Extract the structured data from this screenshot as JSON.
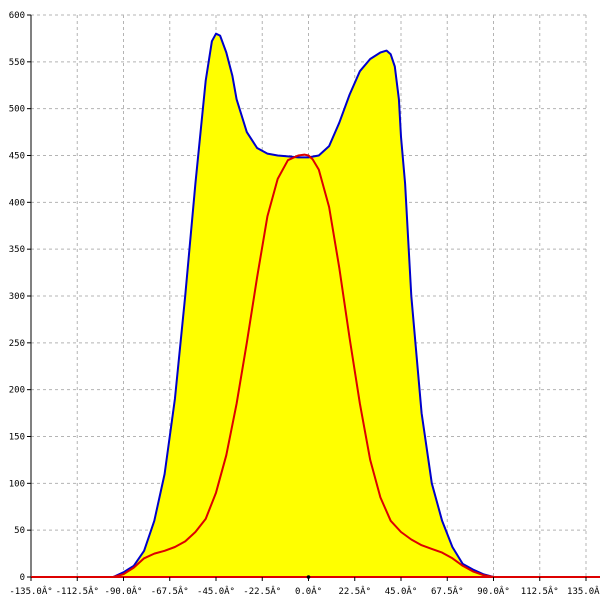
{
  "chart_data": {
    "type": "area",
    "title": "",
    "xlabel": "",
    "ylabel": "",
    "xlim": [
      -135,
      135
    ],
    "ylim": [
      0,
      600
    ],
    "grid": true,
    "x_ticks": [
      -135,
      -112.5,
      -90,
      -67.5,
      -45,
      -22.5,
      0,
      22.5,
      45,
      67.5,
      90,
      112.5,
      135
    ],
    "x_tick_labels": [
      "-135.0Â°",
      "-112.5Â°",
      "-90.0Â°",
      "-67.5Â°",
      "-45.0Â°",
      "-22.5Â°",
      "0.0Â°",
      "22.5Â°",
      "45.0Â°",
      "67.5Â°",
      "90.0Â°",
      "112.5Â°",
      "135.0Â°"
    ],
    "y_ticks": [
      0,
      50,
      100,
      150,
      200,
      250,
      300,
      350,
      400,
      450,
      500,
      550,
      600
    ],
    "y_tick_labels": [
      "0",
      "50",
      "100",
      "150",
      "200",
      "250",
      "300",
      "350",
      "400",
      "450",
      "500",
      "550",
      "600"
    ],
    "series": [
      {
        "color": "#0000cc",
        "fill": "#ffff00",
        "x": [
          -95,
          -90,
          -85,
          -80,
          -75,
          -70,
          -65,
          -60,
          -55,
          -50,
          -47,
          -45,
          -43,
          -40,
          -37,
          -35,
          -30,
          -25,
          -20,
          -15,
          -10,
          -5,
          0,
          5,
          10,
          15,
          20,
          25,
          30,
          35,
          38,
          40,
          42,
          44,
          45,
          47,
          50,
          55,
          60,
          65,
          70,
          75,
          80,
          85,
          90,
          95,
          100
        ],
        "y": [
          0,
          5,
          12,
          28,
          60,
          110,
          190,
          300,
          420,
          530,
          572,
          580,
          578,
          560,
          535,
          510,
          475,
          458,
          452,
          450,
          449,
          448,
          448,
          450,
          460,
          485,
          515,
          540,
          553,
          560,
          562,
          558,
          545,
          510,
          470,
          420,
          300,
          175,
          100,
          60,
          32,
          14,
          8,
          3,
          0,
          0,
          0
        ]
      },
      {
        "color": "#dd0000",
        "x": [
          -95,
          -90,
          -85,
          -80,
          -75,
          -70,
          -65,
          -60,
          -55,
          -50,
          -45,
          -40,
          -35,
          -30,
          -25,
          -20,
          -15,
          -10,
          -5,
          -2,
          0,
          2,
          5,
          10,
          15,
          20,
          25,
          30,
          35,
          40,
          45,
          50,
          55,
          60,
          65,
          70,
          75,
          80,
          85,
          90,
          95,
          100
        ],
        "y": [
          0,
          3,
          10,
          20,
          25,
          28,
          32,
          38,
          48,
          62,
          90,
          130,
          185,
          250,
          320,
          385,
          425,
          445,
          450,
          451,
          450,
          446,
          435,
          395,
          330,
          255,
          185,
          125,
          85,
          60,
          48,
          40,
          34,
          30,
          26,
          20,
          12,
          6,
          2,
          0,
          0,
          0
        ]
      },
      {
        "color": "#dd0000",
        "x": [
          -135,
          135
        ],
        "y": [
          0,
          0
        ]
      }
    ]
  }
}
